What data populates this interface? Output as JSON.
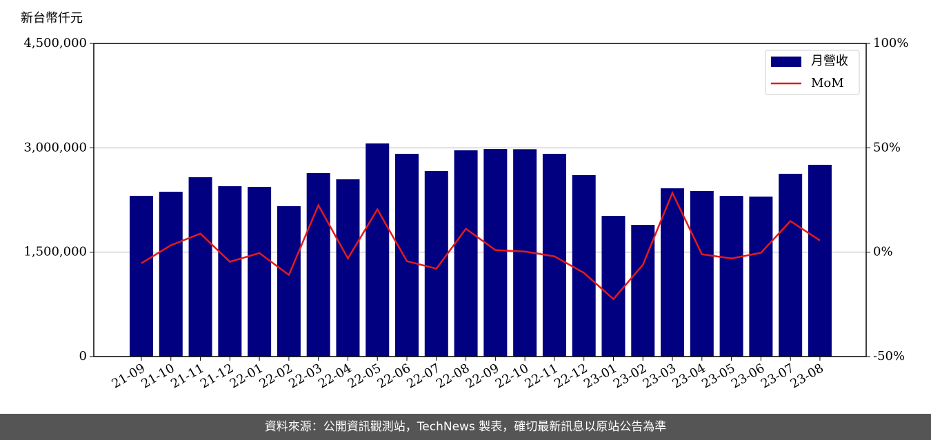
{
  "chart_data": {
    "type": "bar",
    "y_label": "新台幣仟元",
    "footer": "資料來源：公開資訊觀測站，TechNews 製表，確切最新訊息以原站公告為準",
    "categories": [
      "21-09",
      "21-10",
      "21-11",
      "21-12",
      "22-01",
      "22-02",
      "22-03",
      "22-04",
      "22-05",
      "22-06",
      "22-07",
      "22-08",
      "22-09",
      "22-10",
      "22-11",
      "22-12",
      "23-01",
      "23-02",
      "23-03",
      "23-04",
      "23-05",
      "23-06",
      "23-07",
      "23-08"
    ],
    "series": [
      {
        "name": "月營收",
        "type": "bar",
        "color": "#000080",
        "values": [
          2310000,
          2369000,
          2577000,
          2448000,
          2438000,
          2161000,
          2637000,
          2547000,
          3063000,
          2914000,
          2666000,
          2964000,
          2983000,
          2980000,
          2914000,
          2607000,
          2022000,
          1893000,
          2418000,
          2379000,
          2309000,
          2299000,
          2627000,
          2756000
        ]
      },
      {
        "name": "MoM",
        "type": "line",
        "axis": "y2",
        "color": "#e41a1c",
        "values": [
          -5.3,
          3.3,
          8.9,
          -4.6,
          -0.4,
          -10.9,
          22.5,
          -3.0,
          20.5,
          -4.3,
          -7.9,
          11.2,
          1.0,
          0.3,
          -2.0,
          -9.9,
          -22.5,
          -6.0,
          28.4,
          -1.0,
          -3.0,
          -0.3,
          14.9,
          5.6
        ]
      }
    ],
    "ylim": [
      0,
      4500000
    ],
    "yticks": [
      0,
      {
        "value": 1500000,
        "label": "1,500,000"
      },
      {
        "value": 3000000,
        "label": "3,000,000"
      },
      {
        "value": 4500000,
        "label": "4,500,000"
      }
    ],
    "y2lim": [
      -50,
      100
    ],
    "y2ticks": [
      {
        "value": -50,
        "label": "-50%"
      },
      {
        "value": 0,
        "label": "0%"
      },
      {
        "value": 50,
        "label": "50%"
      },
      {
        "value": 100,
        "label": "100%"
      }
    ],
    "grid": true,
    "legend": "upper right"
  }
}
